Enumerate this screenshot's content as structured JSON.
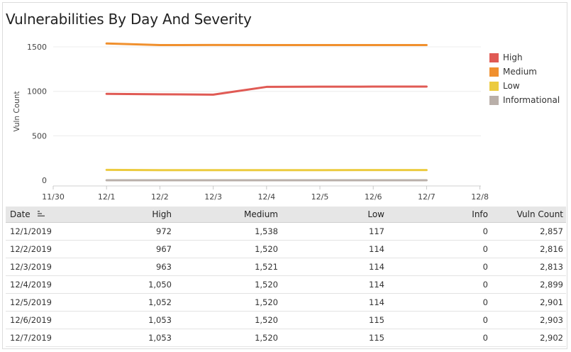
{
  "chart_data": {
    "type": "line",
    "title": "Vulnerabilities By Day And Severity",
    "ylabel": "Vuln Count",
    "xlabel": "",
    "x": [
      "12/1",
      "12/2",
      "12/3",
      "12/4",
      "12/5",
      "12/6",
      "12/7"
    ],
    "x_ticks": [
      "11/30",
      "12/1",
      "12/2",
      "12/3",
      "12/4",
      "12/5",
      "12/6",
      "12/7",
      "12/8"
    ],
    "y_ticks": [
      "1500",
      "1000",
      "500",
      "0"
    ],
    "ylim": [
      0,
      1600
    ],
    "grid": true,
    "legend_position": "right",
    "series": [
      {
        "name": "High",
        "color": "#e05a54",
        "values": [
          972,
          967,
          963,
          1050,
          1052,
          1053,
          1053
        ]
      },
      {
        "name": "Medium",
        "color": "#f0902e",
        "values": [
          1538,
          1520,
          1521,
          1520,
          1520,
          1520,
          1520
        ]
      },
      {
        "name": "Low",
        "color": "#eccb3f",
        "values": [
          117,
          114,
          114,
          114,
          114,
          115,
          115
        ]
      },
      {
        "name": "Informational",
        "color": "#b9afa9",
        "values": [
          0,
          0,
          0,
          0,
          0,
          0,
          0
        ]
      }
    ]
  },
  "table": {
    "headers": [
      "Date",
      "High",
      "Medium",
      "Low",
      "Info",
      "Vuln Count"
    ],
    "rows": [
      [
        "12/1/2019",
        "972",
        "1,538",
        "117",
        "0",
        "2,857"
      ],
      [
        "12/2/2019",
        "967",
        "1,520",
        "114",
        "0",
        "2,816"
      ],
      [
        "12/3/2019",
        "963",
        "1,521",
        "114",
        "0",
        "2,813"
      ],
      [
        "12/4/2019",
        "1,050",
        "1,520",
        "114",
        "0",
        "2,899"
      ],
      [
        "12/5/2019",
        "1,052",
        "1,520",
        "114",
        "0",
        "2,901"
      ],
      [
        "12/6/2019",
        "1,053",
        "1,520",
        "115",
        "0",
        "2,903"
      ],
      [
        "12/7/2019",
        "1,053",
        "1,520",
        "115",
        "0",
        "2,902"
      ]
    ]
  }
}
